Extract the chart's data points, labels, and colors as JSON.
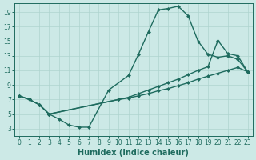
{
  "line1_x": [
    0,
    1,
    2,
    3,
    4,
    5,
    6,
    7,
    9,
    11,
    12,
    13,
    14,
    15,
    16,
    17,
    18,
    19,
    20,
    21,
    22,
    23
  ],
  "line1_y": [
    7.5,
    7.0,
    6.3,
    5.0,
    4.3,
    3.5,
    3.2,
    3.2,
    8.3,
    10.3,
    13.2,
    16.3,
    19.3,
    19.5,
    19.8,
    18.5,
    15.0,
    13.2,
    12.8,
    13.0,
    12.5,
    10.8
  ],
  "line2_x": [
    0,
    1,
    2,
    3,
    10,
    11,
    12,
    13,
    14,
    15,
    16,
    17,
    18,
    19,
    20,
    21,
    22,
    23
  ],
  "line2_y": [
    7.5,
    7.0,
    6.3,
    5.0,
    7.0,
    7.3,
    7.8,
    8.3,
    8.8,
    9.3,
    9.8,
    10.4,
    11.0,
    11.5,
    15.1,
    13.3,
    13.0,
    10.8
  ],
  "line3_x": [
    0,
    1,
    2,
    3,
    10,
    11,
    12,
    13,
    14,
    15,
    16,
    17,
    18,
    19,
    20,
    21,
    22,
    23
  ],
  "line3_y": [
    7.5,
    7.0,
    6.3,
    5.0,
    7.0,
    7.2,
    7.5,
    7.8,
    8.2,
    8.5,
    8.9,
    9.3,
    9.8,
    10.2,
    10.6,
    11.0,
    11.4,
    10.8
  ],
  "xlim": [
    -0.5,
    23.5
  ],
  "ylim": [
    2.0,
    20.2
  ],
  "yticks": [
    3,
    5,
    7,
    9,
    11,
    13,
    15,
    17,
    19
  ],
  "xticks": [
    0,
    1,
    2,
    3,
    4,
    5,
    6,
    7,
    8,
    9,
    10,
    11,
    12,
    13,
    14,
    15,
    16,
    17,
    18,
    19,
    20,
    21,
    22,
    23
  ],
  "xlabel": "Humidex (Indice chaleur)",
  "bg_color": "#cce9e6",
  "grid_color": "#aed4cf",
  "line_color": "#1e6b5e",
  "tick_fontsize": 5.5,
  "label_fontsize": 7
}
